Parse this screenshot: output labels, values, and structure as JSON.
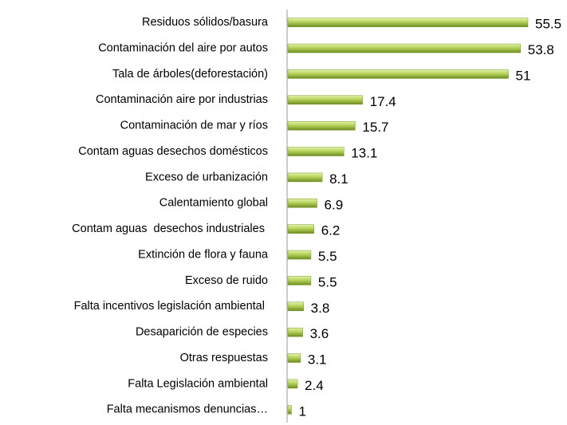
{
  "chart_data": {
    "type": "bar",
    "orientation": "horizontal",
    "categories": [
      "Residuos sólidos/basura",
      "Contaminación del aire por autos",
      "Tala de árboles(deforestación)",
      "Contaminación aire por industrias",
      "Contaminación de mar y ríos",
      "Contam aguas desechos domésticos",
      "Exceso de urbanización",
      "Calentamiento global",
      "Contam aguas  desechos industriales ",
      "Extinción de flora y fauna",
      "Exceso de ruido",
      "Falta incentivos legislación ambiental ",
      "Desaparición de especies",
      "Otras respuestas",
      "Falta Legislación ambiental",
      "Falta mecanismos denuncias…"
    ],
    "values": [
      55.5,
      53.8,
      51,
      17.4,
      15.7,
      13.1,
      8.1,
      6.9,
      6.2,
      5.5,
      5.5,
      3.8,
      3.6,
      3.1,
      2.4,
      1
    ],
    "color": "#9bbb3c"
  }
}
